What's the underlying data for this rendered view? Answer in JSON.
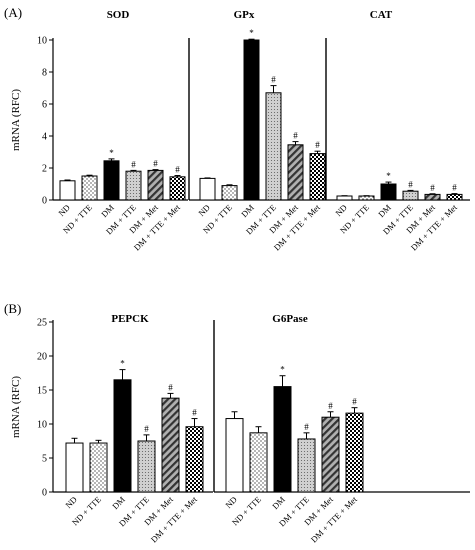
{
  "panels": [
    {
      "label": "(A)",
      "ylabel": "mRNA (RFC)",
      "yticks": [
        0,
        2,
        4,
        6,
        8,
        10
      ]
    },
    {
      "label": "(B)",
      "ylabel": "mRNA (RFC)",
      "yticks": [
        0,
        5,
        10,
        15,
        20,
        25
      ]
    }
  ],
  "chart_data": [
    {
      "type": "bar",
      "panel": "(A)",
      "title": "SOD",
      "ylabel": "mRNA (RFC)",
      "ylim": [
        0,
        10
      ],
      "categories": [
        "ND",
        "ND + TTE",
        "DM",
        "DM + TTE",
        "DM + Met",
        "DM + TTE + Met"
      ],
      "values": [
        1.2,
        1.5,
        2.45,
        1.8,
        1.85,
        1.45
      ],
      "errors": [
        0.05,
        0.05,
        0.12,
        0.05,
        0.05,
        0.08
      ],
      "markers": [
        "",
        "",
        "*",
        "#",
        "#",
        "#"
      ]
    },
    {
      "type": "bar",
      "panel": "(A)",
      "title": "GPx",
      "ylabel": "mRNA (RFC)",
      "ylim": [
        0,
        10
      ],
      "categories": [
        "ND",
        "ND + TTE",
        "DM",
        "DM + TTE",
        "DM + Met",
        "DM + TTE + Met"
      ],
      "values": [
        1.35,
        0.9,
        10.0,
        6.7,
        3.45,
        2.9
      ],
      "errors": [
        0.03,
        0.05,
        0.05,
        0.45,
        0.2,
        0.15
      ],
      "markers": [
        "",
        "",
        "*",
        "#",
        "#",
        "#"
      ]
    },
    {
      "type": "bar",
      "panel": "(A)",
      "title": "CAT",
      "ylabel": "mRNA (RFC)",
      "ylim": [
        0,
        10
      ],
      "categories": [
        "ND",
        "ND + TTE",
        "DM",
        "DM + TTE",
        "DM + Met",
        "DM + TTE + Met"
      ],
      "values": [
        0.25,
        0.25,
        1.0,
        0.55,
        0.35,
        0.35
      ],
      "errors": [
        0.02,
        0.02,
        0.12,
        0.05,
        0.04,
        0.05
      ],
      "markers": [
        "",
        "",
        "*",
        "#",
        "#",
        "#"
      ]
    },
    {
      "type": "bar",
      "panel": "(B)",
      "title": "PEPCK",
      "ylabel": "mRNA (RFC)",
      "ylim": [
        0,
        25
      ],
      "categories": [
        "ND",
        "ND + TTE",
        "DM",
        "DM + TTE",
        "DM + Met",
        "DM + TTE + Met"
      ],
      "values": [
        7.2,
        7.2,
        16.5,
        7.5,
        13.8,
        9.6
      ],
      "errors": [
        0.7,
        0.4,
        1.5,
        0.9,
        0.7,
        1.2
      ],
      "markers": [
        "",
        "",
        "*",
        "#",
        "#",
        "#"
      ]
    },
    {
      "type": "bar",
      "panel": "(B)",
      "title": "G6Pase",
      "ylabel": "mRNA (RFC)",
      "ylim": [
        0,
        25
      ],
      "categories": [
        "ND",
        "ND + TTE",
        "DM",
        "DM + TTE",
        "DM + Met",
        "DM + TTE + Met"
      ],
      "values": [
        10.8,
        8.7,
        15.5,
        7.8,
        11.0,
        11.6
      ],
      "errors": [
        1.0,
        0.9,
        1.6,
        0.9,
        0.8,
        0.8
      ],
      "markers": [
        "",
        "",
        "*",
        "#",
        "#",
        "#"
      ]
    }
  ],
  "colors": {
    "bar_stroke": "#000000",
    "dm_fill": "#000000",
    "ttepat_fill": "#c8c8c8",
    "met_fill": "#8a8a8a",
    "combo_fill": "#555555"
  }
}
